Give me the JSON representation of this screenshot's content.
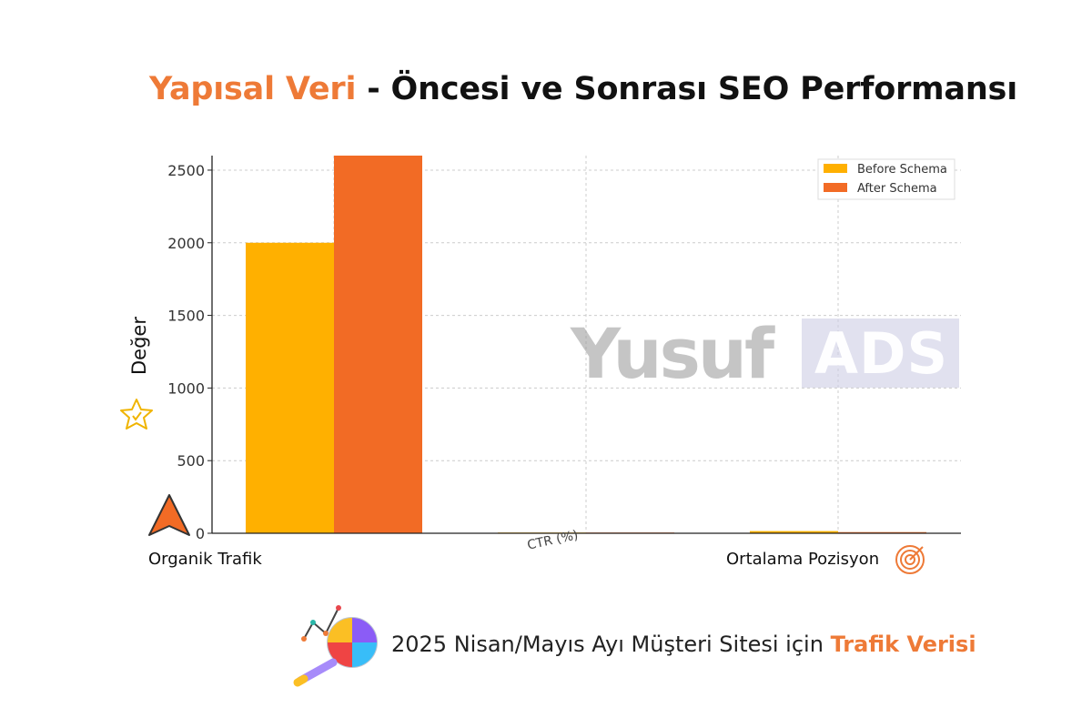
{
  "title": {
    "accent": "Yapısal Veri",
    "rest": " - Öncesi ve Sonrası SEO Performansı"
  },
  "footer": {
    "text": "2025 Nisan/Mayıs Ayı Müşteri Sitesi için ",
    "accent": "Trafik Verisi"
  },
  "watermark": {
    "left": "Yusuf",
    "right": "ADS"
  },
  "colors": {
    "before": "#ffb000",
    "after": "#f26b25",
    "accent": "#ee7a37",
    "grid": "#cccccc"
  },
  "icons": [
    "star-icon",
    "up-arrow-icon",
    "target-icon",
    "chart-magnifier-icon"
  ],
  "chart_data": {
    "type": "bar",
    "title": "",
    "xlabel": "",
    "ylabel": "Değer",
    "categories": [
      "Organik Trafik",
      "CTR (%)",
      "Ortalama Pozisyon"
    ],
    "series": [
      {
        "name": "Before Schema",
        "values": [
          2000,
          2.5,
          15
        ]
      },
      {
        "name": "After Schema",
        "values": [
          2600,
          4.1,
          8
        ]
      }
    ],
    "ylim": [
      0,
      2600
    ],
    "yticks": [
      0,
      500,
      1000,
      1500,
      2000,
      2500
    ],
    "grid": true,
    "legend": "top-right"
  }
}
